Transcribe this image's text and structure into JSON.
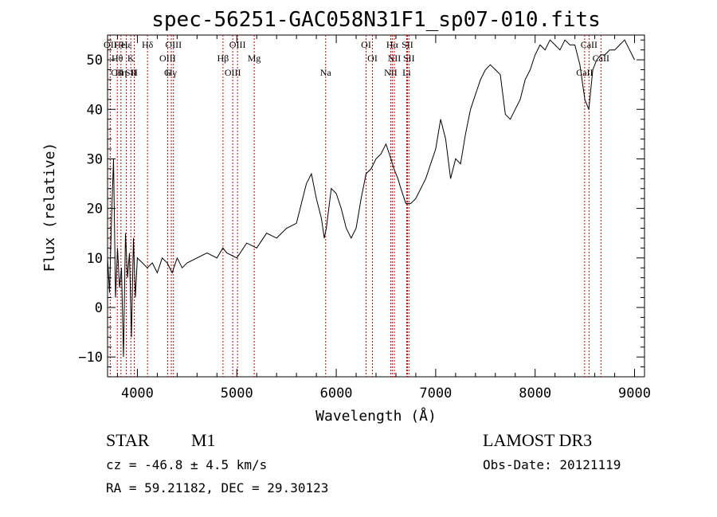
{
  "chart_data": {
    "type": "line",
    "title": "spec-56251-GAC058N31F1_sp07-010.fits",
    "xlabel": "Wavelength (Å)",
    "ylabel": "Flux (relative)",
    "xlim": [
      3700,
      9100
    ],
    "ylim": [
      -14,
      55
    ],
    "xticks": [
      4000,
      5000,
      6000,
      7000,
      8000,
      9000
    ],
    "yticks": [
      -10,
      0,
      10,
      20,
      30,
      40,
      50
    ],
    "x": [
      3700,
      3720,
      3740,
      3760,
      3780,
      3800,
      3820,
      3840,
      3860,
      3880,
      3900,
      3920,
      3940,
      3960,
      3980,
      4000,
      4050,
      4100,
      4150,
      4200,
      4250,
      4300,
      4350,
      4400,
      4450,
      4500,
      4600,
      4700,
      4800,
      4860,
      4900,
      5000,
      5100,
      5200,
      5300,
      5400,
      5500,
      5600,
      5700,
      5750,
      5800,
      5850,
      5880,
      5900,
      5950,
      6000,
      6050,
      6100,
      6150,
      6200,
      6250,
      6300,
      6350,
      6400,
      6450,
      6500,
      6550,
      6580,
      6620,
      6650,
      6700,
      6750,
      6800,
      6850,
      6900,
      6950,
      7000,
      7050,
      7100,
      7150,
      7200,
      7250,
      7300,
      7350,
      7400,
      7450,
      7500,
      7550,
      7600,
      7650,
      7700,
      7750,
      7800,
      7850,
      7900,
      7950,
      8000,
      8050,
      8100,
      8150,
      8200,
      8250,
      8300,
      8350,
      8400,
      8450,
      8500,
      8540,
      8580,
      8620,
      8660,
      8700,
      8750,
      8800,
      8850,
      8900,
      8950,
      9000
    ],
    "y": [
      10,
      3,
      18,
      30,
      2,
      12,
      4,
      8,
      -10,
      15,
      6,
      11,
      -6,
      14,
      2,
      10,
      9,
      8,
      9,
      7,
      10,
      9,
      7,
      10,
      8,
      9,
      10,
      11,
      10,
      12,
      11,
      10,
      13,
      12,
      15,
      14,
      16,
      17,
      25,
      27,
      22,
      18,
      14,
      16,
      24,
      23,
      20,
      16,
      14,
      16,
      22,
      27,
      28,
      30,
      31,
      33,
      30,
      28,
      26,
      24,
      21,
      21,
      22,
      24,
      26,
      29,
      32,
      38,
      34,
      26,
      30,
      29,
      35,
      40,
      43,
      46,
      48,
      49,
      48,
      47,
      39,
      38,
      40,
      42,
      46,
      48,
      51,
      53,
      52,
      54,
      53,
      52,
      54,
      53,
      53,
      49,
      42,
      40,
      48,
      50,
      51,
      51,
      52,
      52,
      53,
      54,
      52,
      50
    ],
    "line_color": "#000000",
    "annotations": [
      {
        "x": 3727,
        "labels": [
          "OII"
        ]
      },
      {
        "x": 3798,
        "labels": [
          "Hθ",
          "CII"
        ]
      },
      {
        "x": 3835,
        "labels": [
          "Hη",
          "Heι"
        ]
      },
      {
        "x": 3889,
        "labels": [
          "Hε"
        ]
      },
      {
        "x": 3934,
        "labels": [
          "K",
          "SII"
        ]
      },
      {
        "x": 3969,
        "labels": [
          "H"
        ]
      },
      {
        "x": 4102,
        "labels": [
          "Hδ"
        ]
      },
      {
        "x": 4304,
        "labels": [
          "OIII",
          "G"
        ]
      },
      {
        "x": 4341,
        "labels": [
          "Hγ"
        ]
      },
      {
        "x": 4363,
        "labels": [
          "OIII"
        ]
      },
      {
        "x": 4861,
        "labels": [
          "Hβ"
        ]
      },
      {
        "x": 4959,
        "labels": [
          "OIII"
        ]
      },
      {
        "x": 5007,
        "labels": [
          "OIII"
        ]
      },
      {
        "x": 5175,
        "labels": [
          "Mg"
        ]
      },
      {
        "x": 5893,
        "labels": [
          "Na"
        ]
      },
      {
        "x": 6300,
        "labels": [
          "OI"
        ]
      },
      {
        "x": 6364,
        "labels": [
          "OI"
        ]
      },
      {
        "x": 6548,
        "labels": [
          "NII"
        ]
      },
      {
        "x": 6563,
        "labels": [
          "Hα"
        ]
      },
      {
        "x": 6584,
        "labels": [
          "NII"
        ]
      },
      {
        "x": 6708,
        "labels": [
          "Li"
        ]
      },
      {
        "x": 6716,
        "labels": [
          "SII"
        ]
      },
      {
        "x": 6731,
        "labels": [
          "SII"
        ]
      },
      {
        "x": 8498,
        "labels": [
          "CaII"
        ]
      },
      {
        "x": 8542,
        "labels": [
          "CaII"
        ]
      },
      {
        "x": 8662,
        "labels": [
          "CaII"
        ]
      }
    ],
    "annotation_color": "#cc0000"
  },
  "info": {
    "object_type": "STAR",
    "subclass": "M1",
    "survey": "LAMOST DR3",
    "cz_line": "cz = -46.8 ± 4.5 km/s",
    "obs_date_line": "Obs-Date: 20121119",
    "coords_line": "RA =  59.21182, DEC =  29.30123"
  }
}
